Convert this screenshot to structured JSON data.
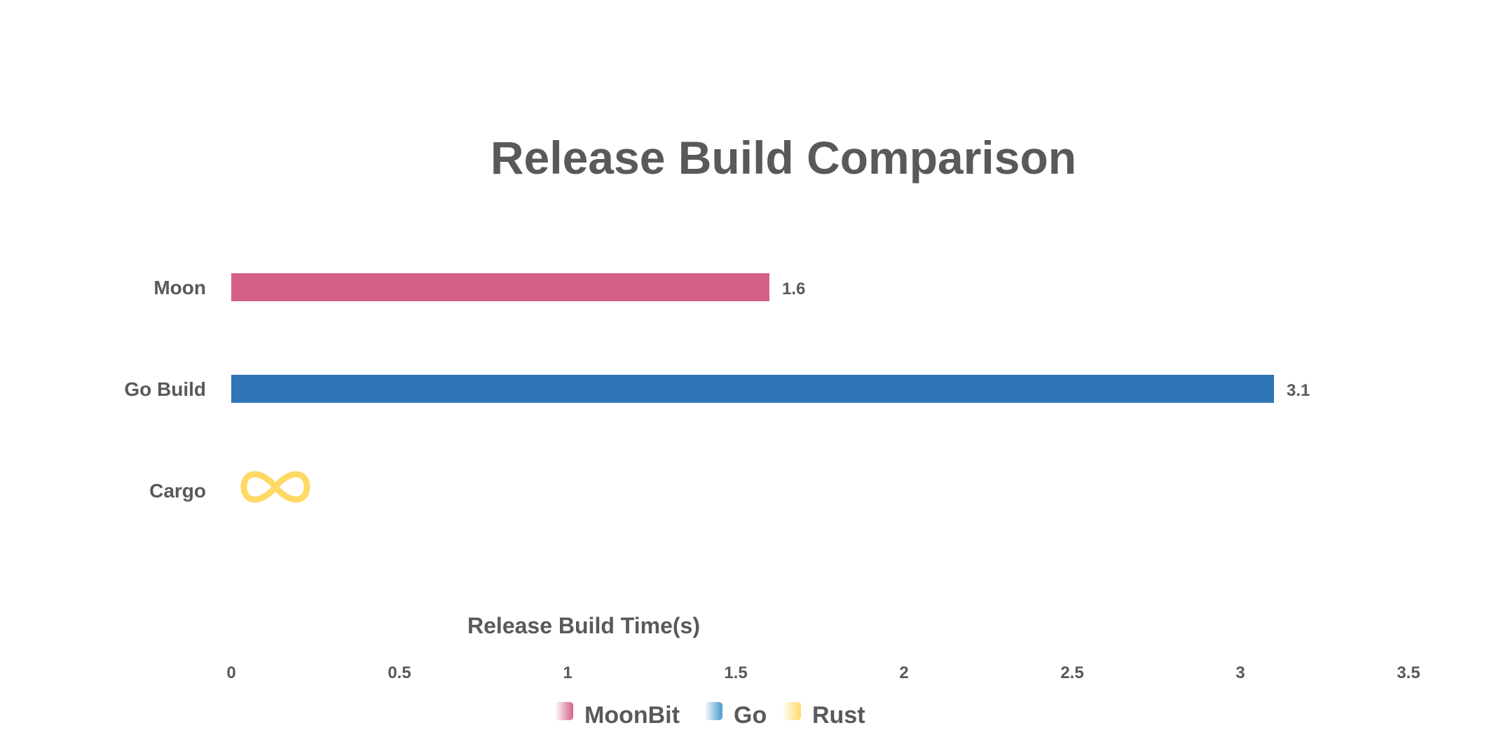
{
  "chart_data": {
    "type": "bar",
    "orientation": "horizontal",
    "title": "Release Build Comparison",
    "xlabel": "Release Build Time(s)",
    "ylabel": "",
    "xlim": [
      0,
      3.5
    ],
    "xticks": [
      "0",
      "0.5",
      "1",
      "1.5",
      "2",
      "2.5",
      "3",
      "3.5"
    ],
    "grid": false,
    "legend_placement": "bottom",
    "categories": [
      "Moon",
      "Go Build",
      "Cargo"
    ],
    "bars": [
      {
        "category": "Moon",
        "series": "MoonBit",
        "value": 1.6,
        "label": "1.6",
        "color": "#d4608a"
      },
      {
        "category": "Go Build",
        "series": "Go",
        "value": 3.1,
        "label": "3.1",
        "color": "#2e75b6"
      },
      {
        "category": "Cargo",
        "series": "Rust",
        "value": null,
        "label": "∞",
        "color": "#ffd966"
      }
    ],
    "legend": [
      {
        "name": "MoonBit",
        "color": "#d4608a"
      },
      {
        "name": "Go",
        "color": "#4a9cc9"
      },
      {
        "name": "Rust",
        "color": "#ffd966"
      }
    ]
  }
}
